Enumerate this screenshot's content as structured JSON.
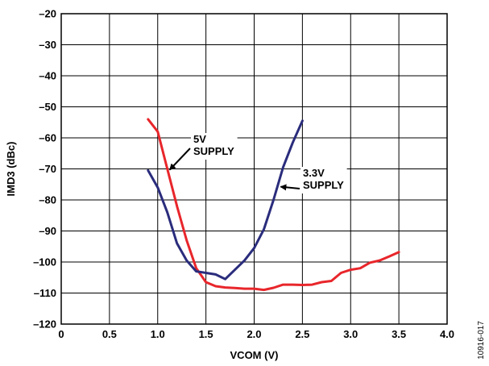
{
  "chart_data": {
    "type": "line",
    "xlabel": "VCOM (V)",
    "ylabel": "IMD3 (dBc)",
    "xlim": [
      0,
      4.0
    ],
    "ylim": [
      -120,
      -20
    ],
    "x_ticks": [
      0,
      0.5,
      1.0,
      1.5,
      2.0,
      2.5,
      3.0,
      3.5,
      4.0
    ],
    "x_tick_labels": [
      "0",
      "0.5",
      "1.0",
      "1.5",
      "2.0",
      "2.5",
      "3.0",
      "3.5",
      "4.0"
    ],
    "y_ticks": [
      -20,
      -30,
      -40,
      -50,
      -60,
      -70,
      -80,
      -90,
      -100,
      -110,
      -120
    ],
    "y_tick_labels": [
      "–20",
      "–30",
      "–40",
      "–50",
      "–60",
      "–70",
      "–80",
      "–90",
      "–100",
      "–110",
      "–120"
    ],
    "grid": true,
    "series": [
      {
        "name": "5V SUPPLY",
        "color": "#e8262b",
        "points": [
          [
            0.9,
            -54
          ],
          [
            1.0,
            -58
          ],
          [
            1.1,
            -70
          ],
          [
            1.2,
            -82
          ],
          [
            1.3,
            -93
          ],
          [
            1.4,
            -102
          ],
          [
            1.5,
            -106.5
          ],
          [
            1.6,
            -107.8
          ],
          [
            1.7,
            -108.2
          ],
          [
            1.8,
            -108.4
          ],
          [
            1.9,
            -108.6
          ],
          [
            2.0,
            -108.6
          ],
          [
            2.1,
            -109.0
          ],
          [
            2.2,
            -108.3
          ],
          [
            2.3,
            -107.3
          ],
          [
            2.4,
            -107.3
          ],
          [
            2.5,
            -107.4
          ],
          [
            2.6,
            -107.3
          ],
          [
            2.7,
            -106.5
          ],
          [
            2.8,
            -106.1
          ],
          [
            2.9,
            -103.5
          ],
          [
            3.0,
            -102.5
          ],
          [
            3.1,
            -102.0
          ],
          [
            3.2,
            -100.2
          ],
          [
            3.3,
            -99.5
          ],
          [
            3.4,
            -98.2
          ],
          [
            3.5,
            -96.8
          ]
        ]
      },
      {
        "name": "3.3V SUPPLY",
        "color": "#2a2c7c",
        "points": [
          [
            0.9,
            -70.5
          ],
          [
            1.0,
            -76
          ],
          [
            1.1,
            -84
          ],
          [
            1.2,
            -94
          ],
          [
            1.3,
            -99.5
          ],
          [
            1.4,
            -103
          ],
          [
            1.5,
            -103.5
          ],
          [
            1.6,
            -104
          ],
          [
            1.7,
            -105.5
          ],
          [
            1.8,
            -102.5
          ],
          [
            1.9,
            -99.5
          ],
          [
            2.0,
            -95.5
          ],
          [
            2.1,
            -89.5
          ],
          [
            2.2,
            -80
          ],
          [
            2.3,
            -69.5
          ],
          [
            2.4,
            -61.5
          ],
          [
            2.5,
            -54.5
          ]
        ]
      }
    ],
    "annotations": [
      {
        "lines": [
          "5V",
          "SUPPLY"
        ],
        "arrow_to": [
          1.1,
          -70
        ]
      },
      {
        "lines": [
          "3.3V",
          "SUPPLY"
        ],
        "arrow_to": [
          2.25,
          -75.5
        ]
      }
    ],
    "figure_id": "10916-017"
  }
}
